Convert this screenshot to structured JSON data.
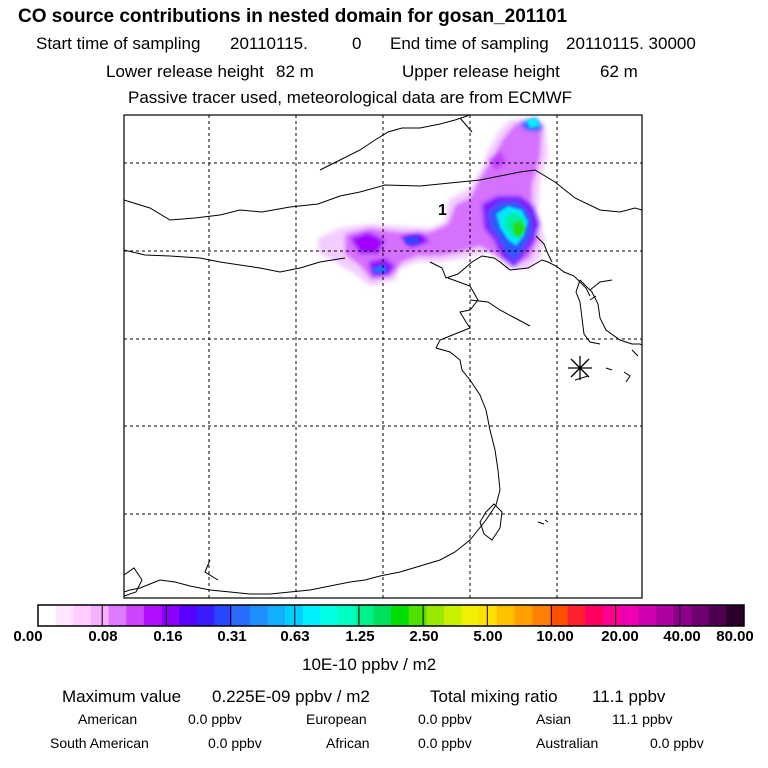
{
  "title": "CO  source contributions in nested domain for gosan_201101",
  "sampling": {
    "start_label": "Start time of sampling",
    "start_value": "20110115.",
    "start_hour": "0",
    "end_label": "End time of sampling",
    "end_value": "20110115. 30000"
  },
  "release": {
    "lower_label": "Lower release height",
    "lower_value": "82 m",
    "upper_label": "Upper release height",
    "upper_value": "62 m"
  },
  "note": "Passive tracer used, meteorological data are from ECMWF",
  "map": {
    "marker_label": "1",
    "receptor_icon": "asterisk-marker-icon"
  },
  "colorbar": {
    "labels": [
      "0.00",
      "0.08",
      "0.16",
      "0.31",
      "0.63",
      "1.25",
      "2.50",
      "5.00",
      "10.00",
      "20.00",
      "40.00",
      "80.00"
    ],
    "unit": "10E-10 ppbv / m2",
    "colors": [
      "#ffffff",
      "#ffe6ff",
      "#ffccff",
      "#f5b0ff",
      "#e07aff",
      "#cc44ff",
      "#b010ff",
      "#8c00ff",
      "#5a00ff",
      "#3a1cff",
      "#2b46ff",
      "#2a6cff",
      "#1f8fff",
      "#10b0ff",
      "#00d0ff",
      "#00f0ff",
      "#00ffe4",
      "#00ffc0",
      "#00f08c",
      "#00e060",
      "#00dd00",
      "#50e000",
      "#98e800",
      "#c8f000",
      "#f0f000",
      "#ffe000",
      "#ffc000",
      "#ffa000",
      "#ff8000",
      "#ff5000",
      "#ff2030",
      "#ff0060",
      "#ff0090",
      "#f000b0",
      "#d000b0",
      "#b000a0",
      "#90008c",
      "#700070",
      "#500050",
      "#2a002a"
    ]
  },
  "summary": {
    "max_label": "Maximum value",
    "max_value": "0.225E-09 ppbv / m2",
    "total_label": "Total mixing ratio",
    "total_value": "11.1 ppbv",
    "regions": [
      {
        "name": "American",
        "value": "0.0 ppbv"
      },
      {
        "name": "European",
        "value": "0.0 ppbv"
      },
      {
        "name": "Asian",
        "value": "11.1 ppbv"
      },
      {
        "name": "South American",
        "value": "0.0 ppbv"
      },
      {
        "name": "African",
        "value": "0.0 ppbv"
      },
      {
        "name": "Australian",
        "value": "0.0 ppbv"
      }
    ]
  }
}
